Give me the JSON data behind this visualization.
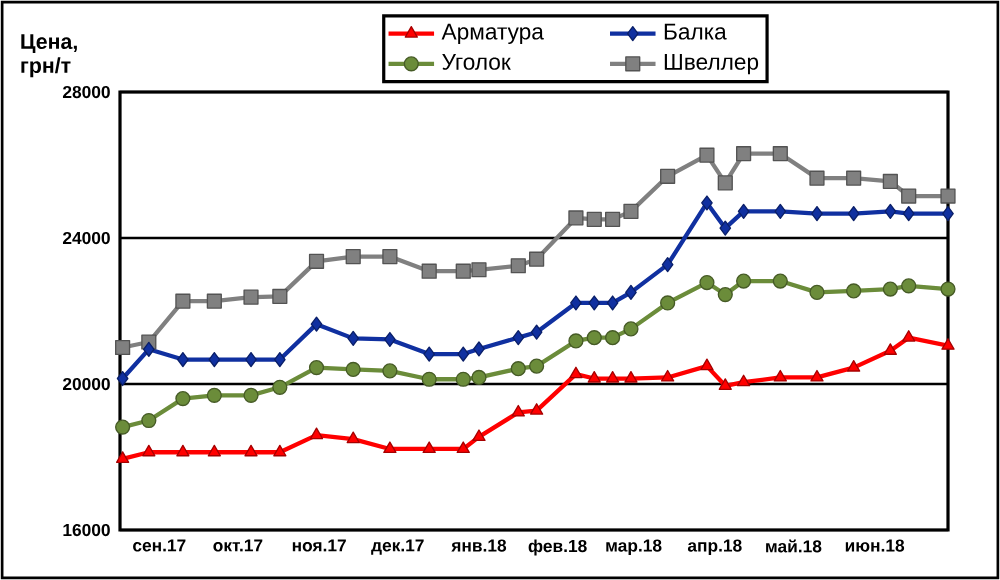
{
  "chart_data": {
    "type": "line",
    "ylabel": "Цена, грн/т",
    "x": [
      "2017-09-02",
      "2017-09-12",
      "2017-09-25",
      "2017-10-07",
      "2017-10-21",
      "2017-11-01",
      "2017-11-15",
      "2017-11-29",
      "2017-12-13",
      "2017-12-28",
      "2018-01-10",
      "2018-01-16",
      "2018-01-31",
      "2018-02-07",
      "2018-02-22",
      "2018-03-01",
      "2018-03-08",
      "2018-03-15",
      "2018-03-29",
      "2018-04-13",
      "2018-04-20",
      "2018-04-27",
      "2018-05-11",
      "2018-05-25",
      "2018-06-08",
      "2018-06-22",
      "2018-06-29",
      "2018-07-14"
    ],
    "series": [
      {
        "name": "Арматура",
        "color": "#ff0000",
        "marker": "triangle",
        "values": [
          17950,
          18130,
          18130,
          18130,
          18130,
          18130,
          18600,
          18490,
          18220,
          18220,
          18220,
          18550,
          19220,
          19270,
          20270,
          20150,
          20150,
          20150,
          20180,
          20490,
          19950,
          20050,
          20180,
          20180,
          20450,
          20910,
          21270,
          21050
        ]
      },
      {
        "name": "Балка",
        "color": "#1030a0",
        "marker": "diamond",
        "values": [
          20150,
          20950,
          20670,
          20670,
          20670,
          20670,
          21640,
          21250,
          21220,
          20820,
          20820,
          20960,
          21270,
          21420,
          22220,
          22220,
          22220,
          22510,
          23270,
          24960,
          24270,
          24730,
          24730,
          24670,
          24670,
          24730,
          24670,
          24670
        ]
      },
      {
        "name": "Уголок",
        "color": "#6b8c3a",
        "marker": "circle",
        "values": [
          18820,
          19000,
          19600,
          19690,
          19690,
          19910,
          20450,
          20400,
          20360,
          20130,
          20130,
          20180,
          20420,
          20490,
          21180,
          21270,
          21270,
          21510,
          22220,
          22780,
          22450,
          22820,
          22820,
          22510,
          22550,
          22600,
          22690,
          22600
        ]
      },
      {
        "name": "Швеллер",
        "color": "#808080",
        "marker": "square",
        "values": [
          21000,
          21150,
          22270,
          22270,
          22380,
          22400,
          23360,
          23490,
          23490,
          23090,
          23090,
          23130,
          23240,
          23420,
          24550,
          24510,
          24510,
          24730,
          25690,
          26270,
          25510,
          26310,
          26310,
          25640,
          25640,
          25550,
          25150,
          25150
        ]
      }
    ],
    "xlim": [
      "2017-09-01",
      "2018-07-14"
    ],
    "xticks": [
      {
        "value": "2017-09-16",
        "label": "сен.17"
      },
      {
        "value": "2017-10-16",
        "label": "окт.17"
      },
      {
        "value": "2017-11-16",
        "label": "ноя.17"
      },
      {
        "value": "2017-12-16",
        "label": "дек.17"
      },
      {
        "value": "2018-01-16",
        "label": "янв.18"
      },
      {
        "value": "2018-02-15",
        "label": "фев.18"
      },
      {
        "value": "2018-03-16",
        "label": "мар.18"
      },
      {
        "value": "2018-04-16",
        "label": "апр.18"
      },
      {
        "value": "2018-05-16",
        "label": "май.18"
      },
      {
        "value": "2018-06-16",
        "label": "июн.18"
      }
    ],
    "ylim": [
      16000,
      28000
    ],
    "yticks": [
      16000,
      20000,
      24000,
      28000
    ],
    "grid": "y",
    "legend": "top"
  }
}
